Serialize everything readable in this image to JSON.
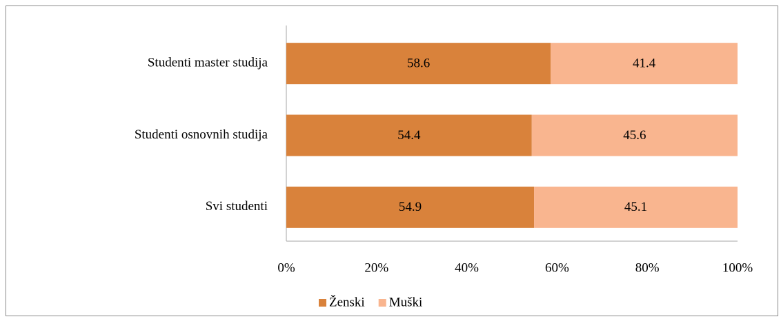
{
  "chart_data": {
    "type": "stacked-bar-horizontal",
    "categories": [
      "Studenti master studija",
      "Studenti osnovnih studija",
      "Svi studenti"
    ],
    "series": [
      {
        "name": "Ženski",
        "color": "#d9823b",
        "values": [
          58.6,
          54.4,
          54.9
        ]
      },
      {
        "name": "Muški",
        "color": "#f9b58f",
        "values": [
          41.4,
          45.6,
          45.1
        ]
      }
    ],
    "xlim": [
      0,
      100
    ],
    "xticks": [
      {
        "value": 0,
        "label": "0%"
      },
      {
        "value": 20,
        "label": "20%"
      },
      {
        "value": 40,
        "label": "40%"
      },
      {
        "value": 60,
        "label": "60%"
      },
      {
        "value": 80,
        "label": "80%"
      },
      {
        "value": 100,
        "label": "100%"
      }
    ],
    "grid": false,
    "legend": "bottom"
  }
}
